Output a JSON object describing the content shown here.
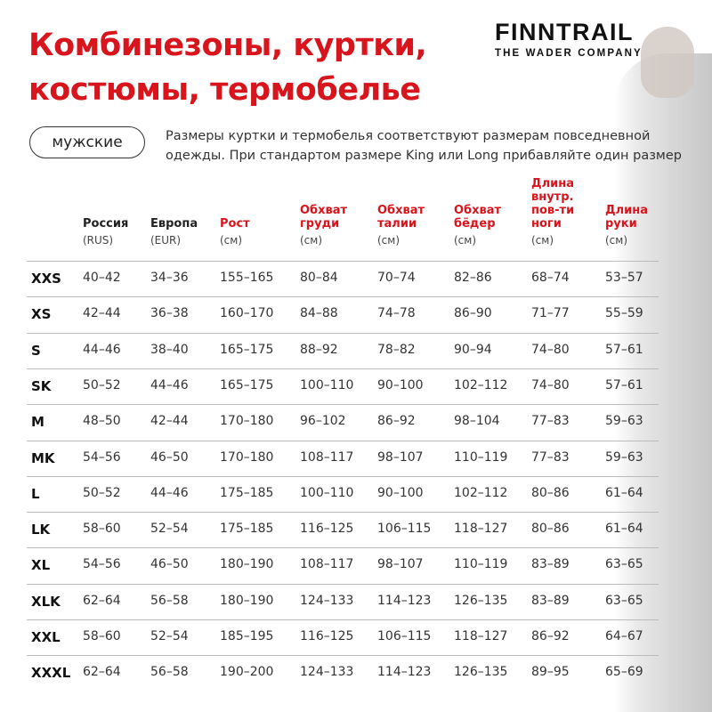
{
  "title": {
    "line1": "Комбинезоны, куртки,",
    "line2": "костюмы, термобелье"
  },
  "brand": {
    "name": "FINNTRAIL",
    "tagline": "THE WADER COMPANY"
  },
  "category_label": "мужские",
  "note": {
    "line1": "Размеры куртки и термобелья соответствуют размерам повседневной",
    "line2": "одежды. При стандартом размере King или Long прибавляйте один размер"
  },
  "accent_color": "#d8141c",
  "table": {
    "columns": [
      {
        "label": "",
        "unit": ""
      },
      {
        "label": "Россия",
        "unit": "(RUS)",
        "highlight": false
      },
      {
        "label": "Европа",
        "unit": "(EUR)",
        "highlight": false
      },
      {
        "label": "Рост",
        "unit": "(см)",
        "highlight": true
      },
      {
        "label": "Обхват груди",
        "unit": "(см)",
        "highlight": true
      },
      {
        "label": "Обхват талии",
        "unit": "(см)",
        "highlight": true
      },
      {
        "label": "Обхват бёдер",
        "unit": "(см)",
        "highlight": true
      },
      {
        "label": "Длина внутр. пов-ти ноги",
        "unit": "(см)",
        "highlight": true
      },
      {
        "label": "Длина руки",
        "unit": "(см)",
        "highlight": true
      }
    ],
    "header_lines": [
      [],
      [
        "Россия"
      ],
      [
        "Европа"
      ],
      [
        "Рост"
      ],
      [
        "Обхват",
        "груди"
      ],
      [
        "Обхват",
        "талии"
      ],
      [
        "Обхват",
        "бёдер"
      ],
      [
        "Длина",
        "внутр.",
        "пов-ти",
        "ноги"
      ],
      [
        "Длина",
        "руки"
      ]
    ],
    "rows": [
      [
        "XXS",
        "40–42",
        "34–36",
        "155–165",
        "80–84",
        "70–74",
        "82–86",
        "68–74",
        "53–57"
      ],
      [
        "XS",
        "42–44",
        "36–38",
        "160–170",
        "84–88",
        "74–78",
        "86–90",
        "71–77",
        "55–59"
      ],
      [
        "S",
        "44–46",
        "38–40",
        "165–175",
        "88–92",
        "78–82",
        "90–94",
        "74–80",
        "57–61"
      ],
      [
        "SK",
        "50–52",
        "44–46",
        "165–175",
        "100–110",
        "90–100",
        "102–112",
        "74–80",
        "57–61"
      ],
      [
        "M",
        "48–50",
        "42–44",
        "170–180",
        "96–102",
        "86–92",
        "98–104",
        "77–83",
        "59–63"
      ],
      [
        "MK",
        "54–56",
        "46–50",
        "170–180",
        "108–117",
        "98–107",
        "110–119",
        "77–83",
        "59–63"
      ],
      [
        "L",
        "50–52",
        "44–46",
        "175–185",
        "100–110",
        "90–100",
        "102–112",
        "80–86",
        "61–64"
      ],
      [
        "LK",
        "58–60",
        "52–54",
        "175–185",
        "116–125",
        "106–115",
        "118–127",
        "80–86",
        "61–64"
      ],
      [
        "XL",
        "54–56",
        "46–50",
        "180–190",
        "108–117",
        "98–107",
        "110–119",
        "83–89",
        "63–65"
      ],
      [
        "XLK",
        "62–64",
        "56–58",
        "180–190",
        "124–133",
        "114–123",
        "126–135",
        "83–89",
        "63–65"
      ],
      [
        "XXL",
        "58–60",
        "52–54",
        "185–195",
        "116–125",
        "106–115",
        "118–127",
        "86–92",
        "64–67"
      ],
      [
        "XXXL",
        "62–64",
        "56–58",
        "190–200",
        "124–133",
        "114–123",
        "126–135",
        "89–95",
        "65–69"
      ]
    ]
  }
}
